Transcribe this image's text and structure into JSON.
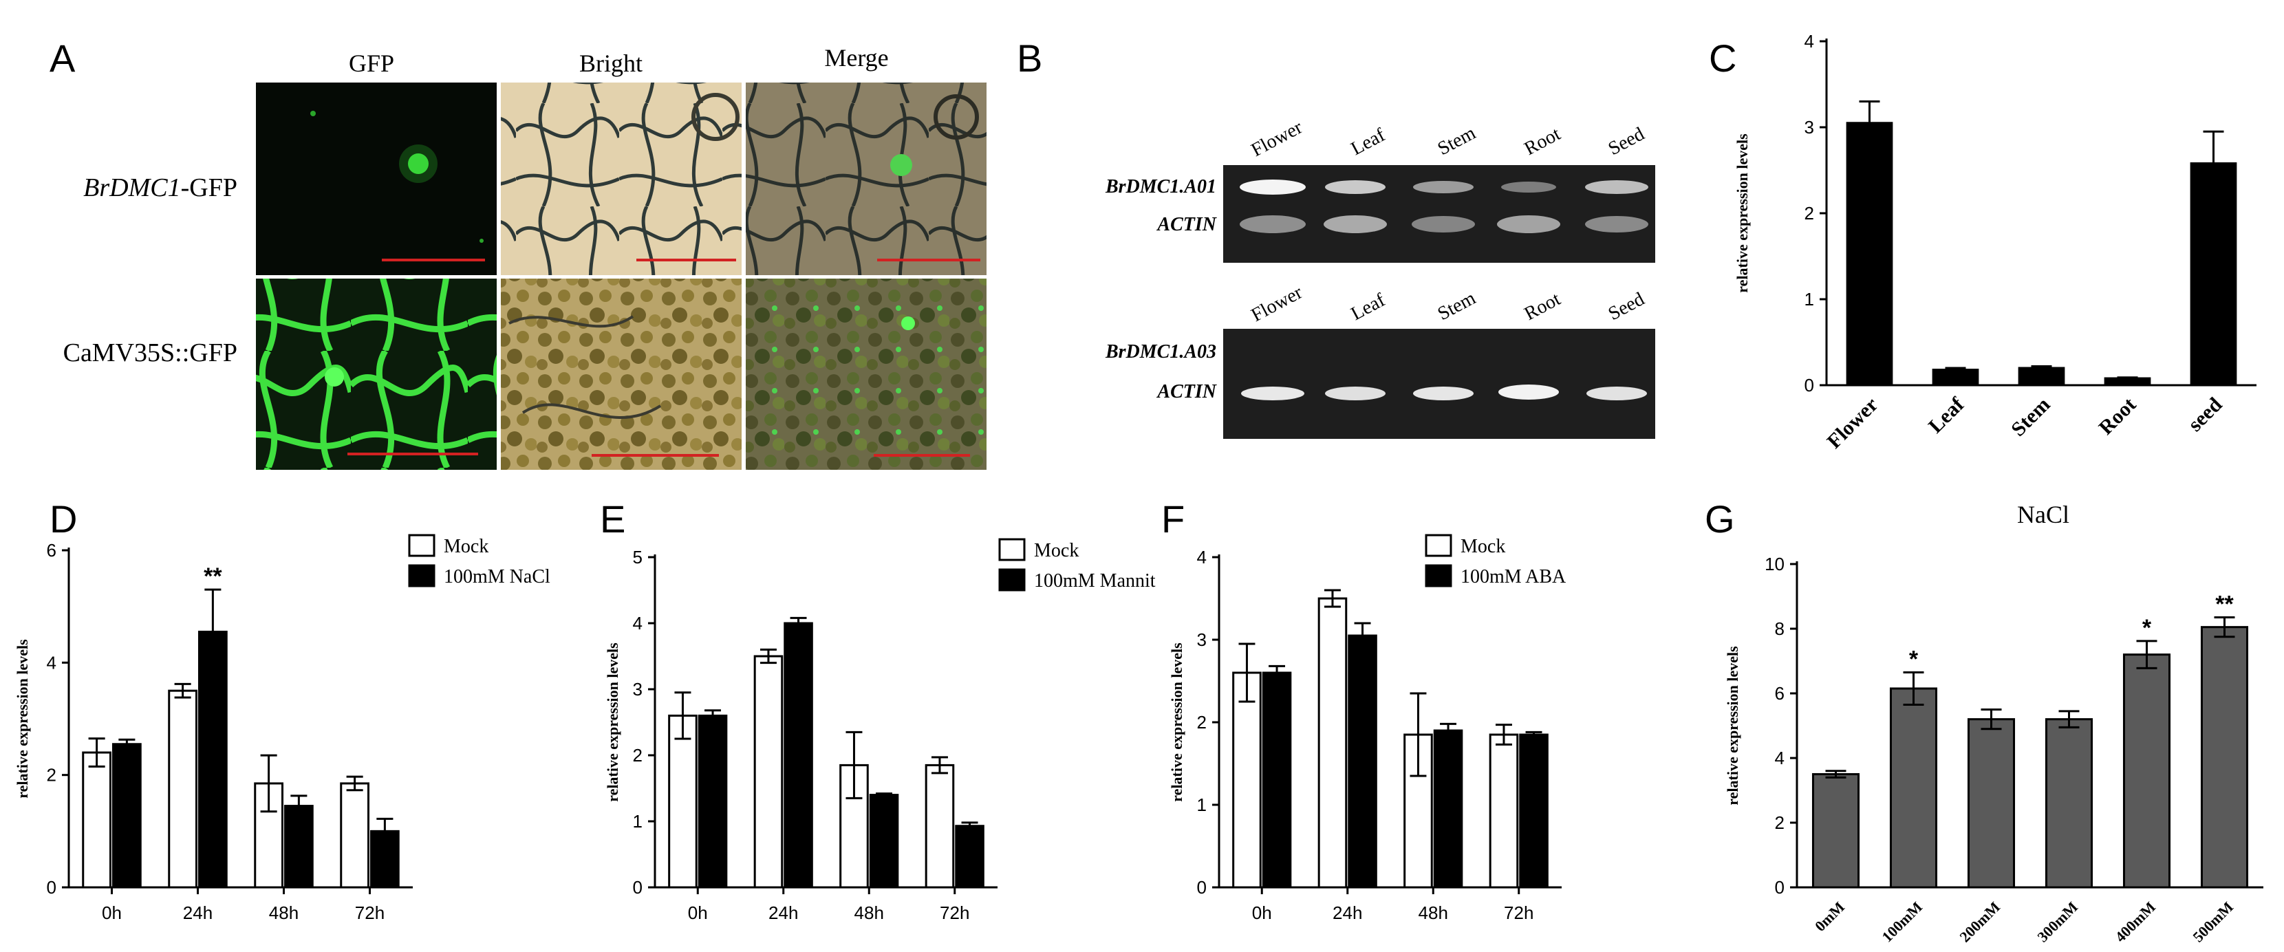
{
  "panel_letters": {
    "A": "A",
    "B": "B",
    "C": "C",
    "D": "D",
    "E": "E",
    "F": "F",
    "G": "G"
  },
  "panelA": {
    "columns": [
      "GFP",
      "Bright",
      "Merge"
    ],
    "rows": [
      {
        "label_italic": "BrDMC1",
        "label_rest": "-GFP"
      },
      {
        "label_italic": "",
        "label_rest": "CaMV35S::GFP"
      }
    ],
    "colors": {
      "gfp": "#35d135",
      "background": "#050a05",
      "scale_bar": "#d22222"
    }
  },
  "panelB": {
    "lanes": [
      "Flower",
      "Leaf",
      "Stem",
      "Root",
      "Seed"
    ],
    "gel1": {
      "genes": [
        "BrDMC1.A01",
        "ACTIN"
      ]
    },
    "gel2": {
      "genes": [
        "BrDMC1.A03",
        "ACTIN"
      ]
    }
  },
  "chart_data": [
    {
      "id": "C",
      "type": "bar",
      "categories": [
        "Flower",
        "Leaf",
        "Stem",
        "Root",
        "seed"
      ],
      "values": [
        3.05,
        0.18,
        0.2,
        0.08,
        2.58
      ],
      "errors": [
        0.25,
        0.02,
        0.02,
        0.01,
        0.37
      ],
      "title": "",
      "xlabel": "",
      "ylabel": "relative expression levels",
      "ylim": [
        0,
        4
      ],
      "yticks": [
        0,
        1,
        2,
        3,
        4
      ],
      "bar_color": "#000000"
    },
    {
      "id": "D",
      "type": "bar",
      "categories": [
        "0h",
        "24h",
        "48h",
        "72h"
      ],
      "series": [
        {
          "name": "Mock",
          "values": [
            2.4,
            3.5,
            1.85,
            1.85
          ],
          "errors": [
            0.25,
            0.12,
            0.5,
            0.12
          ]
        },
        {
          "name": "100mM NaCl",
          "values": [
            2.55,
            4.55,
            1.45,
            1.0
          ],
          "errors": [
            0.08,
            0.75,
            0.18,
            0.22
          ]
        }
      ],
      "annotations": [
        {
          "category": "24h",
          "text": "**"
        }
      ],
      "title": "",
      "xlabel": "",
      "ylabel": "relative expression levels",
      "ylim": [
        0,
        6
      ],
      "yticks": [
        0,
        2,
        4,
        6
      ],
      "legend": "top-right"
    },
    {
      "id": "E",
      "type": "bar",
      "categories": [
        "0h",
        "24h",
        "48h",
        "72h"
      ],
      "series": [
        {
          "name": "Mock",
          "values": [
            2.6,
            3.5,
            1.85,
            1.85
          ],
          "errors": [
            0.35,
            0.1,
            0.5,
            0.12
          ]
        },
        {
          "name": "100mM  Mannitol",
          "values": [
            2.6,
            4.0,
            1.4,
            0.93
          ],
          "errors": [
            0.08,
            0.08,
            0.02,
            0.05
          ]
        }
      ],
      "title": "",
      "xlabel": "",
      "ylabel": "relative expression levels",
      "ylim": [
        0,
        5
      ],
      "yticks": [
        0,
        1,
        2,
        3,
        4,
        5
      ],
      "legend": "top-right"
    },
    {
      "id": "F",
      "type": "bar",
      "categories": [
        "0h",
        "24h",
        "48h",
        "72h"
      ],
      "series": [
        {
          "name": "Mock",
          "values": [
            2.6,
            3.5,
            1.85,
            1.85
          ],
          "errors": [
            0.35,
            0.1,
            0.5,
            0.12
          ]
        },
        {
          "name": "100mM ABA",
          "values": [
            2.6,
            3.05,
            1.9,
            1.85
          ],
          "errors": [
            0.08,
            0.15,
            0.08,
            0.03
          ]
        }
      ],
      "title": "",
      "xlabel": "",
      "ylabel": "relative expression levels",
      "ylim": [
        0,
        4
      ],
      "yticks": [
        0,
        1,
        2,
        3,
        4
      ],
      "legend": "top-right"
    },
    {
      "id": "G",
      "type": "bar",
      "categories": [
        "0mM",
        "100mM",
        "200mM",
        "300mM",
        "400mM",
        "500mM"
      ],
      "values": [
        3.5,
        6.15,
        5.2,
        5.2,
        7.2,
        8.05
      ],
      "errors": [
        0.1,
        0.5,
        0.3,
        0.25,
        0.42,
        0.3
      ],
      "annotations": [
        {
          "category": "100mM",
          "text": "*"
        },
        {
          "category": "400mM",
          "text": "*"
        },
        {
          "category": "500mM",
          "text": "**"
        }
      ],
      "title": "NaCl",
      "xlabel": "",
      "ylabel": "relative expression levels",
      "ylim": [
        0,
        10
      ],
      "yticks": [
        0,
        2,
        4,
        6,
        8,
        10
      ],
      "bar_color": "#5a5a5a"
    }
  ]
}
